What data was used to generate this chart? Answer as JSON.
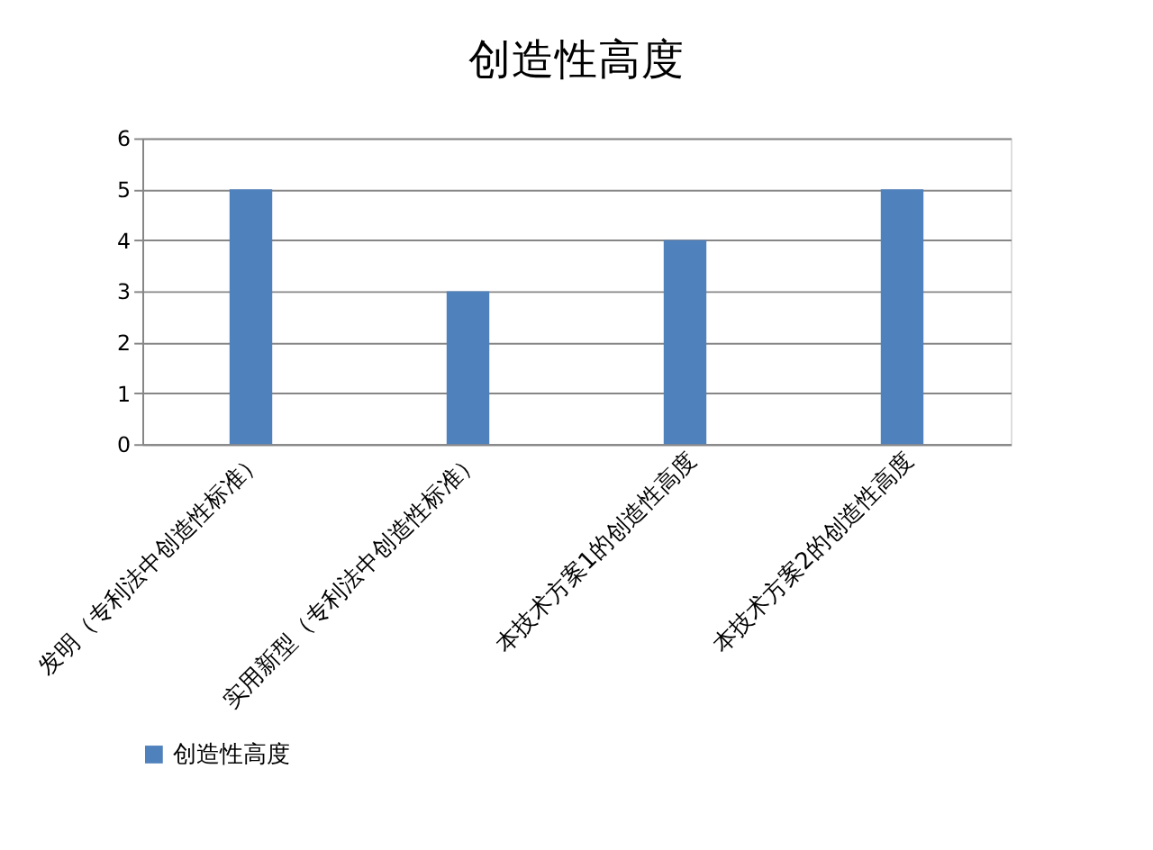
{
  "chart_data": {
    "type": "bar",
    "title": "创造性高度",
    "categories": [
      "发明（专利法中创造性标准）",
      "实用新型（专利法中创造性标准）",
      "本技术方案1的创造性高度",
      "本技术方案2的创造性高度"
    ],
    "series": [
      {
        "name": "创造性高度",
        "color": "#4f81bd",
        "values": [
          5,
          3,
          4,
          5
        ]
      }
    ],
    "ylim": [
      0,
      6
    ],
    "yticks": [
      0,
      1,
      2,
      3,
      4,
      5,
      6
    ],
    "grid": "y",
    "legend": "bottom"
  }
}
